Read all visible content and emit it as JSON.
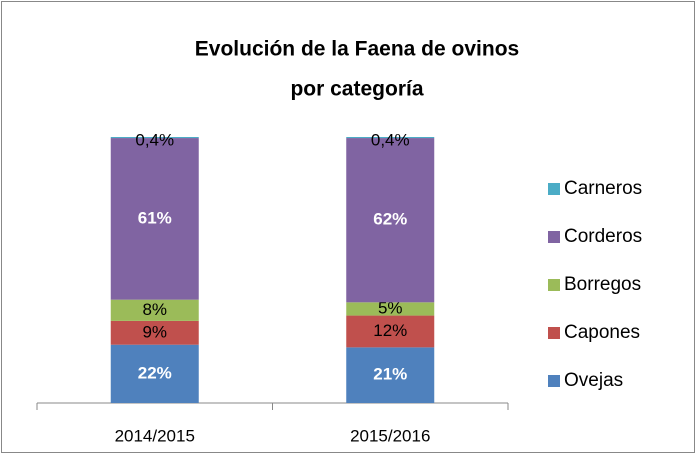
{
  "chart_data": {
    "type": "stacked_bar",
    "title": [
      "Evolución de la Faena de ovinos",
      "por categoría"
    ],
    "categories": [
      "2014/2015",
      "2015/2016"
    ],
    "series": [
      {
        "name": "Ovejas",
        "color": "#4f81bd",
        "label_color": "#ffffff",
        "values": [
          22,
          21
        ],
        "value_labels": [
          "22%",
          "21%"
        ]
      },
      {
        "name": "Capones",
        "color": "#c0504d",
        "label_color": "#000000",
        "values": [
          9,
          12
        ],
        "value_labels": [
          "9%",
          "12%"
        ]
      },
      {
        "name": "Borregos",
        "color": "#9bbb59",
        "label_color": "#000000",
        "values": [
          8,
          5
        ],
        "value_labels": [
          "8%",
          "5%"
        ]
      },
      {
        "name": "Corderos",
        "color": "#8064a2",
        "label_color": "#ffffff",
        "values": [
          61,
          62
        ],
        "value_labels": [
          "61%",
          "62%"
        ]
      },
      {
        "name": "Carneros",
        "color": "#4bacc6",
        "label_color": "#000000",
        "values": [
          0.4,
          0.4
        ],
        "value_labels": [
          "0,4%",
          "0,4%"
        ]
      }
    ],
    "legend": "right"
  }
}
